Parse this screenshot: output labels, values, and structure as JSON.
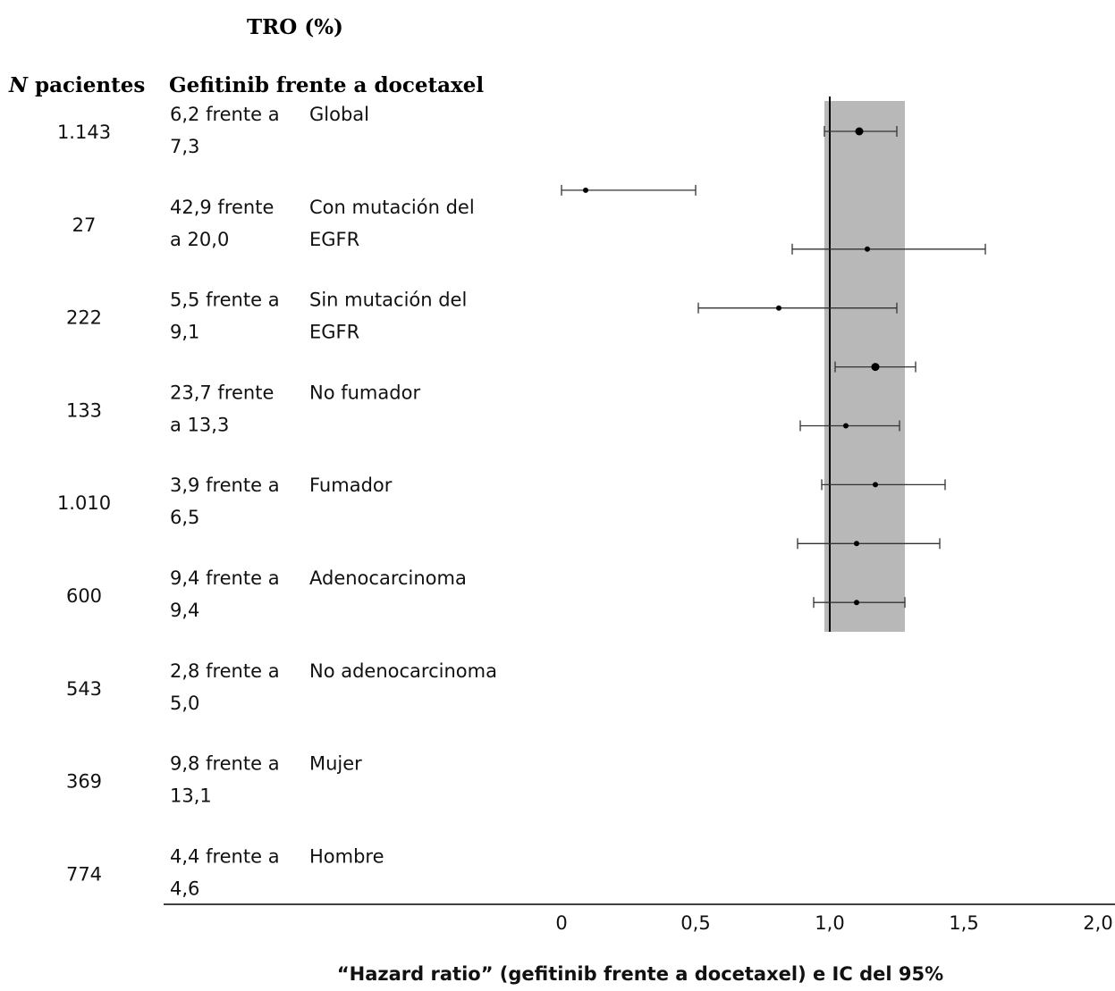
{
  "chart_data": {
    "type": "forest",
    "title": "TRO (%)",
    "column_headers": {
      "n_italic": "N",
      "n_rest": " pacientes",
      "comparison": "Gefitinib frente a docetaxel"
    },
    "rows": [
      {
        "n": "1.143",
        "rate_line1": "6,2 frente a",
        "rate_line2": "7,3",
        "subgroup_line1": "Global",
        "subgroup_line2": ""
      },
      {
        "n": "27",
        "rate_line1": "42,9 frente",
        "rate_line2": "a 20,0",
        "subgroup_line1": "Con mutación del",
        "subgroup_line2": "EGFR"
      },
      {
        "n": "222",
        "rate_line1": "5,5 frente a",
        "rate_line2": "9,1",
        "subgroup_line1": "Sin mutación del",
        "subgroup_line2": "EGFR"
      },
      {
        "n": "133",
        "rate_line1": "23,7 frente",
        "rate_line2": "a 13,3",
        "subgroup_line1": "No fumador",
        "subgroup_line2": ""
      },
      {
        "n": "1.010",
        "rate_line1": "3,9 frente a",
        "rate_line2": "6,5",
        "subgroup_line1": "Fumador",
        "subgroup_line2": ""
      },
      {
        "n": "600",
        "rate_line1": "9,4 frente a",
        "rate_line2": "9,4",
        "subgroup_line1": "Adenocarcinoma",
        "subgroup_line2": ""
      },
      {
        "n": "543",
        "rate_line1": "2,8 frente a",
        "rate_line2": "5,0",
        "subgroup_line1": "No adenocarcinoma",
        "subgroup_line2": ""
      },
      {
        "n": "369",
        "rate_line1": "9,8 frente a",
        "rate_line2": "13,1",
        "subgroup_line1": "Mujer",
        "subgroup_line2": ""
      },
      {
        "n": "774",
        "rate_line1": "4,4 frente a",
        "rate_line2": "4,6",
        "subgroup_line1": "Hombre",
        "subgroup_line2": ""
      }
    ],
    "estimates": [
      {
        "hr": 1.11,
        "lo": 0.98,
        "hi": 1.25
      },
      {
        "hr": 0.09,
        "lo": 0.0,
        "hi": 0.5
      },
      {
        "hr": 1.14,
        "lo": 0.86,
        "hi": 1.58
      },
      {
        "hr": 0.81,
        "lo": 0.51,
        "hi": 1.25
      },
      {
        "hr": 1.17,
        "lo": 1.02,
        "hi": 1.32
      },
      {
        "hr": 1.06,
        "lo": 0.89,
        "hi": 1.26
      },
      {
        "hr": 1.17,
        "lo": 0.97,
        "hi": 1.43
      },
      {
        "hr": 1.1,
        "lo": 0.88,
        "hi": 1.41
      },
      {
        "hr": 1.1,
        "lo": 0.94,
        "hi": 1.28
      }
    ],
    "reference_line": 1.0,
    "non_inferiority_band": [
      0.98,
      1.28
    ],
    "x_ticks": [
      {
        "value": 0,
        "label": "0"
      },
      {
        "value": 0.5,
        "label": "0,5"
      },
      {
        "value": 1.0,
        "label": "1,0"
      },
      {
        "value": 1.5,
        "label": "1,5"
      },
      {
        "value": 2.0,
        "label": "2,0"
      }
    ],
    "xlim": [
      0,
      2.0
    ],
    "xlabel": "“Hazard ratio” (gefitinib frente a docetaxel) e IC del 95%",
    "band_color": "#b8b8b8",
    "line_color": "#000000"
  }
}
